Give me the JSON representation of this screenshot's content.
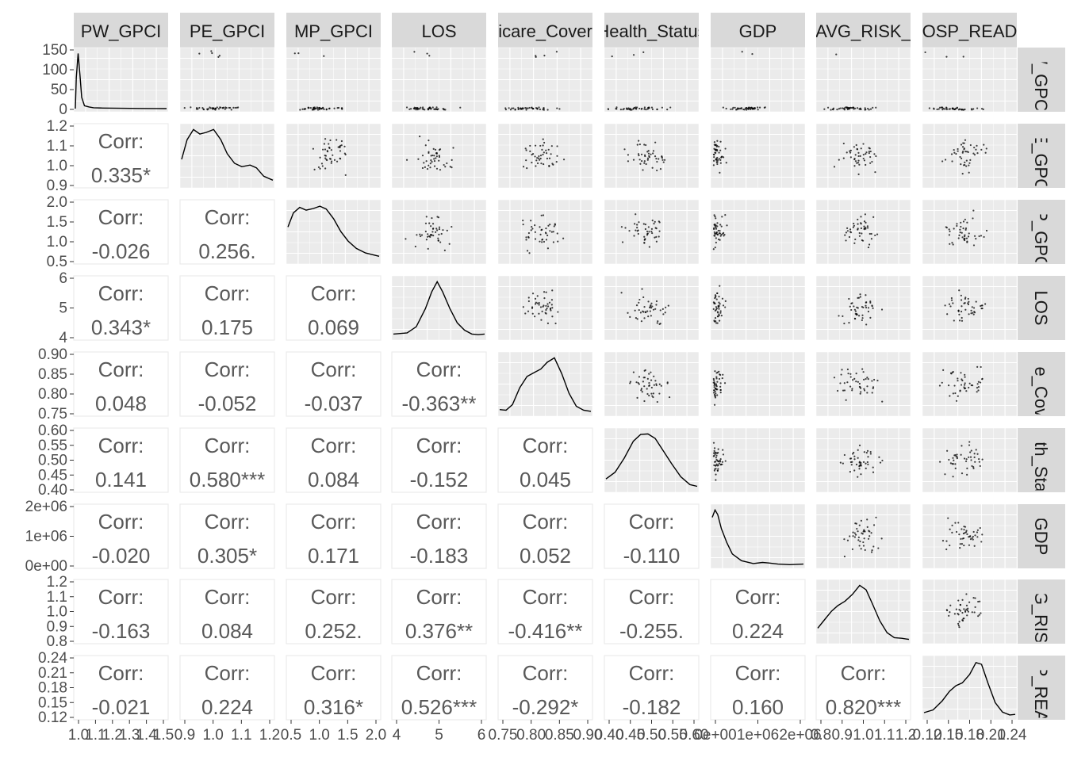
{
  "chart_data": {
    "type": "scatterplot-matrix",
    "variables": [
      "PW_GPCI",
      "PE_GPCI",
      "MP_GPCI",
      "LOS",
      "Medicare_Coverage",
      "Health_Status",
      "GDP",
      "AVG_RISK",
      "HOSP_READ"
    ],
    "strip_labels_top": [
      "PW_GPCI",
      "PE_GPCI",
      "MP_GPCI",
      "LOS",
      "icare_Cover",
      "Health_Status",
      "GDP",
      "AVG_RISK_",
      "OSP_READ"
    ],
    "strip_labels_right": [
      "W_GPC",
      "PE_GPC",
      "MP_GPC",
      "LOS",
      "are_Cov",
      "alth_Sta",
      "GDP",
      "VG_RIS",
      "SP_REA"
    ],
    "corr_label": "Corr:",
    "correlations": [
      {
        "row": 1,
        "col": 0,
        "text": "0.335*"
      },
      {
        "row": 2,
        "col": 0,
        "text": "-0.026"
      },
      {
        "row": 2,
        "col": 1,
        "text": "0.256."
      },
      {
        "row": 3,
        "col": 0,
        "text": "0.343*"
      },
      {
        "row": 3,
        "col": 1,
        "text": "0.175"
      },
      {
        "row": 3,
        "col": 2,
        "text": "0.069"
      },
      {
        "row": 4,
        "col": 0,
        "text": "0.048"
      },
      {
        "row": 4,
        "col": 1,
        "text": "-0.052"
      },
      {
        "row": 4,
        "col": 2,
        "text": "-0.037"
      },
      {
        "row": 4,
        "col": 3,
        "text": "-0.363**"
      },
      {
        "row": 5,
        "col": 0,
        "text": "0.141"
      },
      {
        "row": 5,
        "col": 1,
        "text": "0.580***"
      },
      {
        "row": 5,
        "col": 2,
        "text": "0.084"
      },
      {
        "row": 5,
        "col": 3,
        "text": "-0.152"
      },
      {
        "row": 5,
        "col": 4,
        "text": "0.045"
      },
      {
        "row": 6,
        "col": 0,
        "text": "-0.020"
      },
      {
        "row": 6,
        "col": 1,
        "text": "0.305*"
      },
      {
        "row": 6,
        "col": 2,
        "text": "0.171"
      },
      {
        "row": 6,
        "col": 3,
        "text": "-0.183"
      },
      {
        "row": 6,
        "col": 4,
        "text": "0.052"
      },
      {
        "row": 6,
        "col": 5,
        "text": "-0.110"
      },
      {
        "row": 7,
        "col": 0,
        "text": "-0.163"
      },
      {
        "row": 7,
        "col": 1,
        "text": "0.084"
      },
      {
        "row": 7,
        "col": 2,
        "text": "0.252."
      },
      {
        "row": 7,
        "col": 3,
        "text": "0.376**"
      },
      {
        "row": 7,
        "col": 4,
        "text": "-0.416**"
      },
      {
        "row": 7,
        "col": 5,
        "text": "-0.255."
      },
      {
        "row": 7,
        "col": 6,
        "text": "0.224"
      },
      {
        "row": 8,
        "col": 0,
        "text": "-0.021"
      },
      {
        "row": 8,
        "col": 1,
        "text": "0.224"
      },
      {
        "row": 8,
        "col": 2,
        "text": "0.316*"
      },
      {
        "row": 8,
        "col": 3,
        "text": "0.526***"
      },
      {
        "row": 8,
        "col": 4,
        "text": "-0.292*"
      },
      {
        "row": 8,
        "col": 5,
        "text": "-0.182"
      },
      {
        "row": 8,
        "col": 6,
        "text": "0.160"
      },
      {
        "row": 8,
        "col": 7,
        "text": "0.820***"
      }
    ],
    "y_axis_ticks": [
      [
        "150",
        "100",
        "50",
        "0"
      ],
      [
        "1.2",
        "1.1",
        "1.0",
        "0.9"
      ],
      [
        "2.0",
        "1.5",
        "1.0",
        "0.5"
      ],
      [
        "6",
        "5",
        "4"
      ],
      [
        "0.90",
        "0.85",
        "0.80",
        "0.75"
      ],
      [
        "0.60",
        "0.55",
        "0.50",
        "0.45",
        "0.40"
      ],
      [
        "2e+06",
        "1e+06",
        "0e+00"
      ],
      [
        "1.2",
        "1.1",
        "1.0",
        "0.9",
        "0.8"
      ],
      [
        "0.24",
        "0.21",
        "0.18",
        "0.15",
        "0.12"
      ]
    ],
    "y_axis_ranges": [
      [
        -5,
        150
      ],
      [
        0.86,
        1.23
      ],
      [
        0.3,
        2.05
      ],
      [
        3.8,
        6.9
      ],
      [
        0.745,
        0.925
      ],
      [
        0.4,
        0.615
      ],
      [
        -0.1,
        2.6
      ],
      [
        0.78,
        1.24
      ],
      [
        0.12,
        0.245
      ]
    ],
    "x_axis_ticks": [
      [
        "1.0",
        "1.1",
        "1.2",
        "1.3",
        "1.4",
        "1.5"
      ],
      [
        "0.9",
        "1.0",
        "1.1",
        "1.2"
      ],
      [
        "0.5",
        "1.0",
        "1.5",
        "2.0"
      ],
      [
        "4",
        "5",
        "6"
      ],
      [
        "0.75",
        "0.80",
        "0.85",
        "0.90"
      ],
      [
        "0.40",
        "0.45",
        "0.50",
        "0.55",
        "0.60"
      ],
      [
        "0e+00",
        "1e+06",
        "2e+06"
      ],
      [
        "0.8",
        "0.9",
        "1.0",
        "1.1",
        "1.2"
      ],
      [
        "0.12",
        "0.15",
        "0.18",
        "0.21",
        "0.24"
      ]
    ],
    "density_curves": [
      [
        [
          0,
          0.0
        ],
        [
          0.01,
          0.55
        ],
        [
          0.03,
          0.98
        ],
        [
          0.05,
          0.6
        ],
        [
          0.07,
          0.2
        ],
        [
          0.1,
          0.05
        ],
        [
          0.15,
          0.03
        ],
        [
          0.2,
          0.015
        ],
        [
          0.3,
          0.01
        ],
        [
          0.5,
          0.005
        ],
        [
          0.7,
          0.003
        ],
        [
          0.9,
          0.002
        ],
        [
          1.0,
          0.0
        ]
      ],
      [
        [
          0.0,
          0.45
        ],
        [
          0.06,
          0.8
        ],
        [
          0.13,
          0.98
        ],
        [
          0.2,
          0.9
        ],
        [
          0.27,
          0.93
        ],
        [
          0.35,
          0.98
        ],
        [
          0.43,
          0.8
        ],
        [
          0.5,
          0.55
        ],
        [
          0.58,
          0.38
        ],
        [
          0.66,
          0.32
        ],
        [
          0.75,
          0.35
        ],
        [
          0.82,
          0.3
        ],
        [
          0.9,
          0.15
        ],
        [
          1.0,
          0.08
        ]
      ],
      [
        [
          0.0,
          0.6
        ],
        [
          0.06,
          0.85
        ],
        [
          0.13,
          0.95
        ],
        [
          0.2,
          0.9
        ],
        [
          0.28,
          0.93
        ],
        [
          0.35,
          0.97
        ],
        [
          0.42,
          0.92
        ],
        [
          0.5,
          0.75
        ],
        [
          0.58,
          0.52
        ],
        [
          0.66,
          0.35
        ],
        [
          0.75,
          0.22
        ],
        [
          0.85,
          0.14
        ],
        [
          1.0,
          0.08
        ]
      ],
      [
        [
          0.0,
          0.05
        ],
        [
          0.15,
          0.07
        ],
        [
          0.25,
          0.18
        ],
        [
          0.35,
          0.5
        ],
        [
          0.42,
          0.8
        ],
        [
          0.48,
          0.98
        ],
        [
          0.54,
          0.8
        ],
        [
          0.62,
          0.5
        ],
        [
          0.7,
          0.25
        ],
        [
          0.78,
          0.12
        ],
        [
          0.86,
          0.05
        ],
        [
          0.93,
          0.04
        ],
        [
          1.0,
          0.05
        ]
      ],
      [
        [
          0.0,
          0.06
        ],
        [
          0.07,
          0.05
        ],
        [
          0.14,
          0.15
        ],
        [
          0.22,
          0.45
        ],
        [
          0.3,
          0.65
        ],
        [
          0.38,
          0.72
        ],
        [
          0.45,
          0.78
        ],
        [
          0.52,
          0.9
        ],
        [
          0.6,
          0.98
        ],
        [
          0.68,
          0.7
        ],
        [
          0.76,
          0.35
        ],
        [
          0.84,
          0.12
        ],
        [
          0.92,
          0.05
        ],
        [
          1.0,
          0.03
        ]
      ],
      [
        [
          0.0,
          0.18
        ],
        [
          0.1,
          0.3
        ],
        [
          0.2,
          0.55
        ],
        [
          0.3,
          0.85
        ],
        [
          0.38,
          0.97
        ],
        [
          0.46,
          0.98
        ],
        [
          0.54,
          0.9
        ],
        [
          0.62,
          0.7
        ],
        [
          0.72,
          0.45
        ],
        [
          0.82,
          0.22
        ],
        [
          0.92,
          0.08
        ],
        [
          1.0,
          0.05
        ]
      ],
      [
        [
          0.0,
          0.85
        ],
        [
          0.03,
          0.98
        ],
        [
          0.06,
          0.9
        ],
        [
          0.1,
          0.65
        ],
        [
          0.16,
          0.4
        ],
        [
          0.22,
          0.2
        ],
        [
          0.32,
          0.08
        ],
        [
          0.45,
          0.03
        ],
        [
          0.55,
          0.05
        ],
        [
          0.62,
          0.04
        ],
        [
          0.72,
          0.02
        ],
        [
          0.85,
          0.01
        ],
        [
          1.0,
          0.02
        ]
      ],
      [
        [
          0.0,
          0.22
        ],
        [
          0.08,
          0.38
        ],
        [
          0.15,
          0.52
        ],
        [
          0.22,
          0.62
        ],
        [
          0.3,
          0.7
        ],
        [
          0.38,
          0.82
        ],
        [
          0.46,
          0.98
        ],
        [
          0.53,
          0.9
        ],
        [
          0.6,
          0.65
        ],
        [
          0.68,
          0.35
        ],
        [
          0.76,
          0.14
        ],
        [
          0.84,
          0.05
        ],
        [
          0.92,
          0.04
        ],
        [
          1.0,
          0.02
        ]
      ],
      [
        [
          0.0,
          0.07
        ],
        [
          0.1,
          0.12
        ],
        [
          0.2,
          0.28
        ],
        [
          0.28,
          0.45
        ],
        [
          0.35,
          0.55
        ],
        [
          0.42,
          0.6
        ],
        [
          0.5,
          0.75
        ],
        [
          0.57,
          0.96
        ],
        [
          0.63,
          0.93
        ],
        [
          0.7,
          0.6
        ],
        [
          0.78,
          0.25
        ],
        [
          0.86,
          0.08
        ],
        [
          0.94,
          0.03
        ],
        [
          1.0,
          0.04
        ]
      ]
    ]
  }
}
